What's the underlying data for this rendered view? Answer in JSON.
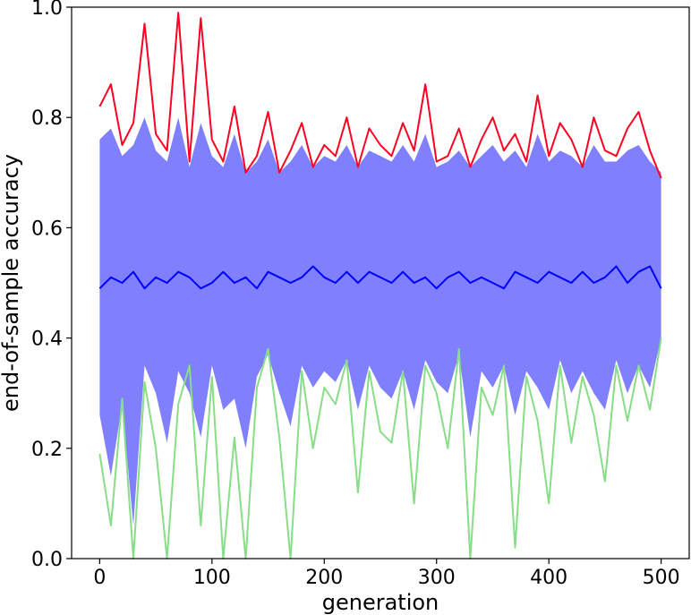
{
  "chart_data": {
    "type": "line",
    "title": "",
    "xlabel": "generation",
    "ylabel": "end-of-sample accuracy",
    "xlim": [
      -25,
      525
    ],
    "ylim": [
      0.0,
      1.0
    ],
    "xticks": [
      0,
      100,
      200,
      300,
      400,
      500
    ],
    "xtick_labels": [
      "0",
      "100",
      "200",
      "300",
      "400",
      "500"
    ],
    "yticks": [
      0.0,
      0.2,
      0.4,
      0.6,
      0.8,
      1.0
    ],
    "ytick_labels": [
      "0.0",
      "0.2",
      "0.4",
      "0.6",
      "0.8",
      "1.0"
    ],
    "grid": false,
    "x": [
      0,
      10,
      20,
      30,
      40,
      50,
      60,
      70,
      80,
      90,
      100,
      110,
      120,
      130,
      140,
      150,
      160,
      170,
      180,
      190,
      200,
      210,
      220,
      230,
      240,
      250,
      260,
      270,
      280,
      290,
      300,
      310,
      320,
      330,
      340,
      350,
      360,
      370,
      380,
      390,
      400,
      410,
      420,
      430,
      440,
      450,
      460,
      470,
      480,
      490,
      500
    ],
    "series": [
      {
        "kind": "line",
        "color": "#ff0022",
        "values": [
          0.82,
          0.86,
          0.75,
          0.79,
          0.97,
          0.77,
          0.74,
          0.99,
          0.72,
          0.98,
          0.76,
          0.72,
          0.82,
          0.7,
          0.73,
          0.81,
          0.7,
          0.74,
          0.79,
          0.71,
          0.75,
          0.73,
          0.8,
          0.71,
          0.78,
          0.75,
          0.73,
          0.79,
          0.74,
          0.86,
          0.72,
          0.73,
          0.78,
          0.71,
          0.76,
          0.8,
          0.74,
          0.77,
          0.72,
          0.84,
          0.73,
          0.79,
          0.76,
          0.71,
          0.8,
          0.74,
          0.73,
          0.78,
          0.81,
          0.74,
          0.69
        ]
      },
      {
        "kind": "line",
        "color": "#0000ff",
        "values": [
          0.49,
          0.51,
          0.5,
          0.52,
          0.49,
          0.51,
          0.5,
          0.52,
          0.51,
          0.49,
          0.5,
          0.52,
          0.5,
          0.51,
          0.49,
          0.52,
          0.51,
          0.5,
          0.51,
          0.53,
          0.51,
          0.5,
          0.52,
          0.5,
          0.52,
          0.51,
          0.5,
          0.52,
          0.5,
          0.51,
          0.49,
          0.51,
          0.52,
          0.5,
          0.51,
          0.5,
          0.49,
          0.52,
          0.51,
          0.5,
          0.52,
          0.51,
          0.5,
          0.52,
          0.5,
          0.51,
          0.53,
          0.5,
          0.52,
          0.53,
          0.49
        ]
      },
      {
        "kind": "line",
        "color": "#88dd88",
        "values": [
          0.19,
          0.06,
          0.29,
          0.0,
          0.32,
          0.2,
          0.0,
          0.28,
          0.35,
          0.06,
          0.33,
          0.0,
          0.22,
          0.0,
          0.31,
          0.38,
          0.22,
          0.0,
          0.34,
          0.2,
          0.31,
          0.28,
          0.36,
          0.12,
          0.34,
          0.23,
          0.21,
          0.34,
          0.1,
          0.35,
          0.3,
          0.2,
          0.38,
          0.0,
          0.31,
          0.26,
          0.35,
          0.02,
          0.33,
          0.25,
          0.1,
          0.35,
          0.21,
          0.33,
          0.26,
          0.14,
          0.35,
          0.25,
          0.35,
          0.27,
          0.4
        ]
      }
    ],
    "band": {
      "color": "#8080ff",
      "lower": [
        0.26,
        0.15,
        0.28,
        0.06,
        0.35,
        0.3,
        0.21,
        0.34,
        0.3,
        0.22,
        0.35,
        0.27,
        0.29,
        0.2,
        0.33,
        0.37,
        0.3,
        0.24,
        0.35,
        0.31,
        0.34,
        0.32,
        0.36,
        0.27,
        0.35,
        0.31,
        0.29,
        0.34,
        0.27,
        0.36,
        0.32,
        0.3,
        0.37,
        0.22,
        0.34,
        0.31,
        0.35,
        0.26,
        0.34,
        0.31,
        0.27,
        0.36,
        0.3,
        0.34,
        0.3,
        0.27,
        0.36,
        0.3,
        0.35,
        0.31,
        0.4
      ],
      "upper": [
        0.76,
        0.78,
        0.73,
        0.75,
        0.8,
        0.74,
        0.72,
        0.8,
        0.71,
        0.79,
        0.73,
        0.71,
        0.77,
        0.7,
        0.72,
        0.76,
        0.7,
        0.72,
        0.75,
        0.71,
        0.73,
        0.72,
        0.75,
        0.71,
        0.74,
        0.73,
        0.72,
        0.75,
        0.72,
        0.77,
        0.71,
        0.72,
        0.74,
        0.71,
        0.73,
        0.75,
        0.72,
        0.74,
        0.71,
        0.77,
        0.72,
        0.74,
        0.73,
        0.71,
        0.75,
        0.72,
        0.72,
        0.74,
        0.75,
        0.72,
        0.7
      ]
    }
  }
}
